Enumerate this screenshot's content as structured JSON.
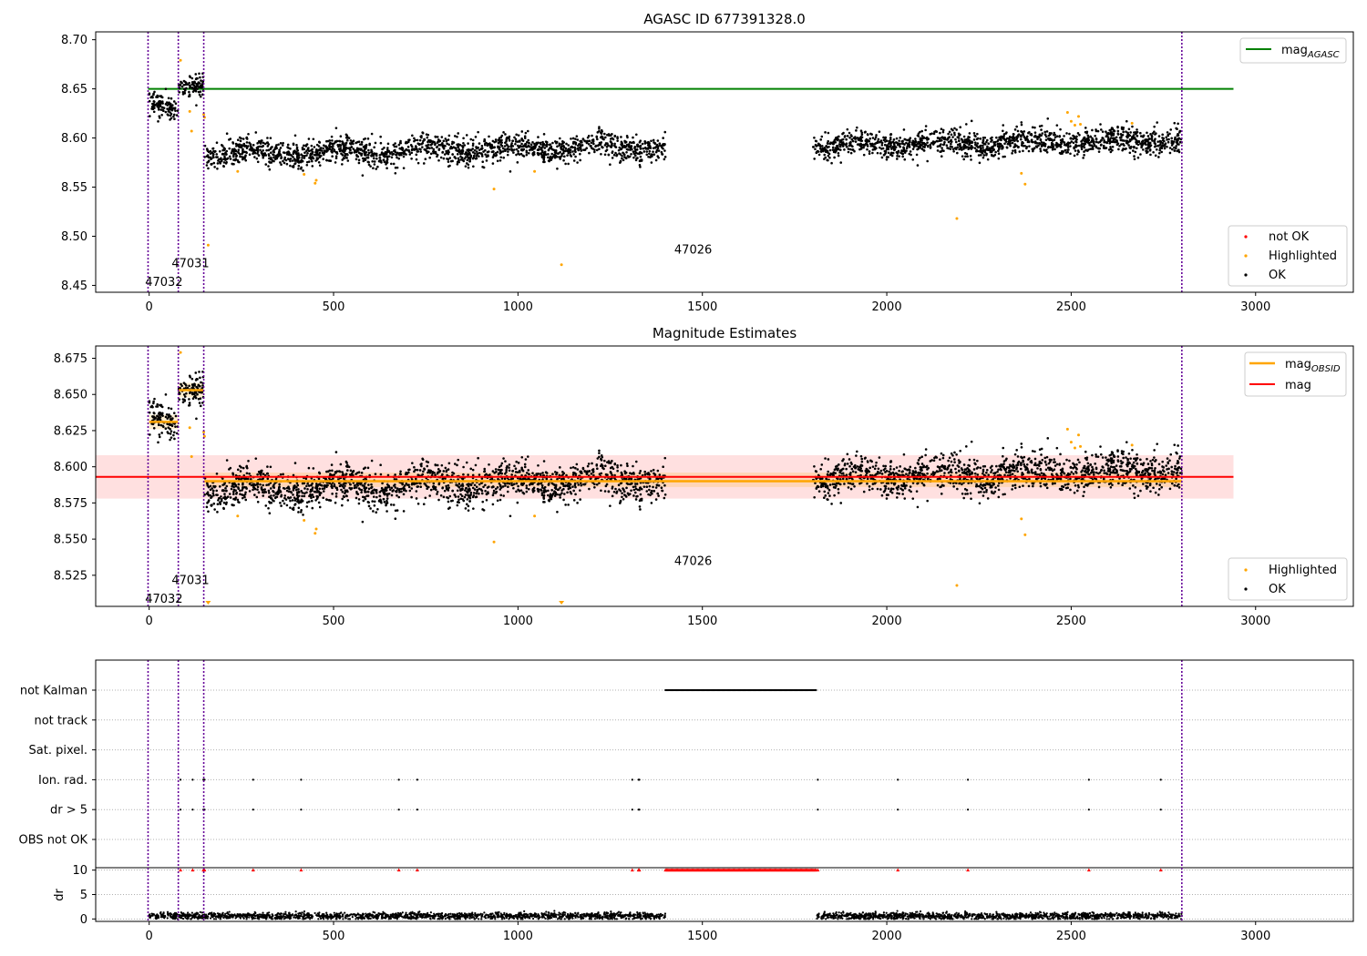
{
  "chart_data": [
    {
      "type": "scatter",
      "title": "AGASC ID 677391328.0",
      "xlim": [
        -145,
        3265
      ],
      "ylim": [
        8.443,
        8.708
      ],
      "xticks": [
        0,
        500,
        1000,
        1500,
        2000,
        2500,
        3000
      ],
      "yticks": [
        8.45,
        8.5,
        8.55,
        8.6,
        8.65,
        8.7
      ],
      "ytick_labels": [
        "8.45",
        "8.50",
        "8.55",
        "8.60",
        "8.65",
        "8.70"
      ],
      "obsid_boundaries": [
        -3,
        79,
        148,
        2800
      ],
      "obsid_labels": [
        {
          "text": "47032",
          "x": 40,
          "y": 8.453
        },
        {
          "text": "47031",
          "x": 112,
          "y": 8.472
        },
        {
          "text": "47026",
          "x": 1475,
          "y": 8.486
        }
      ],
      "reference_line": {
        "name": "mag_AGASC",
        "value": 8.65,
        "x_range": [
          -3,
          2940
        ],
        "color": "#008000"
      },
      "ok_segments": [
        {
          "x": [
            0,
            78
          ],
          "mean": 8.633,
          "trend": -0.012,
          "sd": 0.006
        },
        {
          "x": [
            80,
            147
          ],
          "mean": 8.653,
          "trend": 0.002,
          "sd": 0.005
        },
        {
          "x": [
            150,
            1400
          ],
          "mean": 8.588,
          "trend": 0.008,
          "sd": 0.0065,
          "wave": 0.004
        },
        {
          "x": [
            1800,
            2800
          ],
          "mean": 8.595,
          "trend": 0.006,
          "sd": 0.0065,
          "wave": 0.003
        }
      ],
      "highlighted_points": [
        [
          85,
          8.679
        ],
        [
          110,
          8.627
        ],
        [
          115,
          8.607
        ],
        [
          148,
          8.624
        ],
        [
          150,
          8.621
        ],
        [
          160,
          8.491
        ],
        [
          240,
          8.566
        ],
        [
          420,
          8.563
        ],
        [
          450,
          8.554
        ],
        [
          453,
          8.557
        ],
        [
          935,
          8.548
        ],
        [
          1045,
          8.566
        ],
        [
          1118,
          8.471
        ],
        [
          2190,
          8.518
        ],
        [
          2365,
          8.564
        ],
        [
          2375,
          8.553
        ],
        [
          2490,
          8.626
        ],
        [
          2500,
          8.617
        ],
        [
          2510,
          8.613
        ],
        [
          2520,
          8.622
        ],
        [
          2525,
          8.614
        ],
        [
          2665,
          8.615
        ]
      ],
      "legends": {
        "upper": [
          {
            "label": "mag",
            "subscript": "AGASC",
            "color": "#008000"
          }
        ],
        "lower": [
          {
            "label": "not OK",
            "color": "#ff0000"
          },
          {
            "label": "Highlighted",
            "color": "#ffa500"
          },
          {
            "label": "OK",
            "color": "#000000"
          }
        ]
      }
    },
    {
      "type": "scatter",
      "title": "Magnitude Estimates",
      "xlim": [
        -145,
        3265
      ],
      "ylim": [
        8.5035,
        8.6835
      ],
      "xticks": [
        0,
        500,
        1000,
        1500,
        2000,
        2500,
        3000
      ],
      "yticks": [
        8.525,
        8.55,
        8.575,
        8.6,
        8.625,
        8.65,
        8.675
      ],
      "ytick_labels": [
        "8.525",
        "8.550",
        "8.575",
        "8.600",
        "8.625",
        "8.650",
        "8.675"
      ],
      "obsid_boundaries": [
        -3,
        79,
        148,
        2800
      ],
      "obsid_labels": [
        {
          "text": "47032",
          "x": 40,
          "y": 8.5085
        },
        {
          "text": "47031",
          "x": 112,
          "y": 8.5215
        },
        {
          "text": "47026",
          "x": 1475,
          "y": 8.5345
        }
      ],
      "mag_line": {
        "name": "mag",
        "value": 8.593,
        "band": [
          8.578,
          8.608
        ],
        "x_range": [
          -145,
          2940
        ],
        "color": "#ff0000"
      },
      "mag_obsid_segments": [
        {
          "x": [
            0,
            78
          ],
          "value": 8.631,
          "band": [
            8.626,
            8.636
          ]
        },
        {
          "x": [
            80,
            147
          ],
          "value": 8.653,
          "band": [
            8.648,
            8.658
          ]
        },
        {
          "x": [
            150,
            2800
          ],
          "value": 8.59,
          "band": [
            8.586,
            8.596
          ]
        }
      ],
      "ok_segments": [
        {
          "x": [
            0,
            78
          ],
          "mean": 8.633,
          "trend": -0.012,
          "sd": 0.006
        },
        {
          "x": [
            80,
            147
          ],
          "mean": 8.653,
          "trend": 0.002,
          "sd": 0.005
        },
        {
          "x": [
            150,
            1400
          ],
          "mean": 8.588,
          "trend": 0.008,
          "sd": 0.0065,
          "wave": 0.004
        },
        {
          "x": [
            1800,
            2800
          ],
          "mean": 8.595,
          "trend": 0.006,
          "sd": 0.0065,
          "wave": 0.003
        }
      ],
      "highlighted_points": [
        [
          85,
          8.679
        ],
        [
          110,
          8.627
        ],
        [
          115,
          8.607
        ],
        [
          148,
          8.624
        ],
        [
          150,
          8.621
        ],
        [
          240,
          8.566
        ],
        [
          420,
          8.563
        ],
        [
          450,
          8.554
        ],
        [
          453,
          8.557
        ],
        [
          935,
          8.548
        ],
        [
          1045,
          8.566
        ],
        [
          2190,
          8.518
        ],
        [
          2365,
          8.564
        ],
        [
          2375,
          8.553
        ],
        [
          2490,
          8.626
        ],
        [
          2500,
          8.617
        ],
        [
          2510,
          8.613
        ],
        [
          2520,
          8.622
        ],
        [
          2525,
          8.614
        ],
        [
          2665,
          8.615
        ]
      ],
      "clipped_markers": [
        160,
        1118
      ],
      "legends": {
        "upper": [
          {
            "label": "mag",
            "subscript": "OBSID",
            "color": "#ffa500"
          },
          {
            "label": "mag",
            "subscript": "",
            "color": "#ff0000"
          }
        ],
        "lower": [
          {
            "label": "Highlighted",
            "color": "#ffa500"
          },
          {
            "label": "OK",
            "color": "#000000"
          }
        ]
      }
    },
    {
      "type": "scatter",
      "title": "",
      "xlim": [
        -145,
        3265
      ],
      "xticks": [
        0,
        500,
        1000,
        1500,
        2000,
        2500,
        3000
      ],
      "flag_rows": [
        "not Kalman",
        "not track",
        "Sat. pixel.",
        "Ion. rad.",
        "dr > 5",
        "OBS not OK"
      ],
      "obsid_boundaries": [
        -3,
        79,
        148,
        2800
      ],
      "not_kalman_range": [
        1400,
        1810
      ],
      "sparse_flag_times": [
        85,
        118,
        147,
        150,
        282,
        412,
        677,
        727,
        1310,
        1327,
        1329,
        1813,
        2030,
        2220,
        2548,
        2743
      ],
      "dr_panel": {
        "ylabel": "dr",
        "yticks": [
          0,
          5,
          10
        ],
        "ylim": [
          -0.5,
          10.5
        ],
        "ok_segments": [
          [
            0,
            1400
          ],
          [
            1810,
            2800
          ]
        ],
        "typical_dr": 0.6,
        "clipped_range": [
          1400,
          1810
        ],
        "clipped_times": [
          85,
          118,
          147,
          150,
          282,
          412,
          677,
          727,
          1310,
          1327,
          1329,
          1813,
          2030,
          2220,
          2548,
          2743
        ]
      }
    }
  ]
}
